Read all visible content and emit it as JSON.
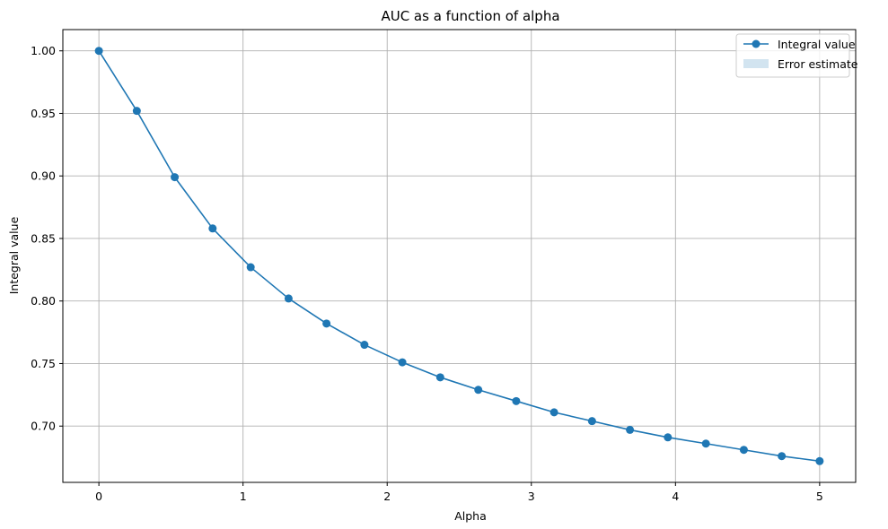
{
  "chart_data": {
    "type": "line",
    "title": "AUC as a function of alpha",
    "xlabel": "Alpha",
    "ylabel": "Integral value",
    "xlim": [
      -0.25,
      5.25
    ],
    "ylim": [
      0.655,
      1.017
    ],
    "xticks": [
      0,
      1,
      2,
      3,
      4,
      5
    ],
    "xtick_labels": [
      "0",
      "1",
      "2",
      "3",
      "4",
      "5"
    ],
    "yticks": [
      0.7,
      0.75,
      0.8,
      0.85,
      0.9,
      0.95,
      1.0
    ],
    "ytick_labels": [
      "0.70",
      "0.75",
      "0.80",
      "0.85",
      "0.90",
      "0.95",
      "1.00"
    ],
    "grid": true,
    "legend_position": "top-right",
    "series": [
      {
        "name": "Integral value",
        "kind": "line-marker",
        "color": "#1f77b4",
        "x": [
          0,
          0.263,
          0.526,
          0.789,
          1.053,
          1.316,
          1.579,
          1.842,
          2.105,
          2.368,
          2.632,
          2.895,
          3.158,
          3.421,
          3.684,
          3.947,
          4.211,
          4.474,
          4.737,
          5.0
        ],
        "y": [
          1.0,
          0.952,
          0.899,
          0.858,
          0.827,
          0.802,
          0.782,
          0.765,
          0.751,
          0.739,
          0.729,
          0.72,
          0.711,
          0.704,
          0.697,
          0.691,
          0.686,
          0.681,
          0.676,
          0.672
        ]
      },
      {
        "name": "Error estimate",
        "kind": "band",
        "color": "#1f77b4",
        "opacity": 0.2
      }
    ]
  }
}
